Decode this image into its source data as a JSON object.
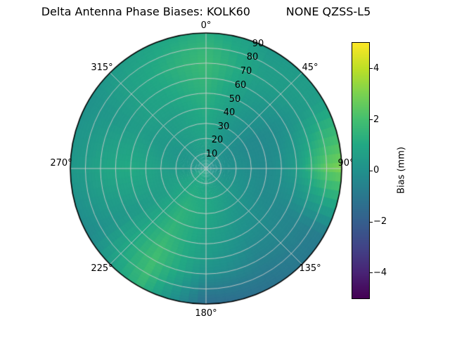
{
  "title": "Delta Antenna Phase Biases: KOLK60          NONE QZSS-L5",
  "chart_data": {
    "type": "heatmap",
    "projection": "polar",
    "title": "Delta Antenna Phase Biases: KOLK60          NONE QZSS-L5",
    "station": "KOLK60",
    "signal": "NONE QZSS-L5",
    "azimuth_ticks": [
      {
        "angle_deg": 0,
        "label": "0°"
      },
      {
        "angle_deg": 45,
        "label": "45°"
      },
      {
        "angle_deg": 90,
        "label": "90°"
      },
      {
        "angle_deg": 135,
        "label": "135°"
      },
      {
        "angle_deg": 180,
        "label": "180°"
      },
      {
        "angle_deg": 225,
        "label": "225°"
      },
      {
        "angle_deg": 270,
        "label": "270°"
      },
      {
        "angle_deg": 315,
        "label": "315°"
      }
    ],
    "elevation_ticks": [
      "10",
      "20",
      "30",
      "40",
      "50",
      "60",
      "70",
      "80",
      "90"
    ],
    "grid": {
      "rings": 9,
      "spoke_step_deg": 45,
      "color": "#c8c8c8"
    },
    "colorbar": {
      "label": "Bias (mm)",
      "min": -5,
      "max": 5,
      "ticks": [
        {
          "value": 4,
          "label": "4"
        },
        {
          "value": 2,
          "label": "2"
        },
        {
          "value": 0,
          "label": "0"
        },
        {
          "value": -2,
          "label": "−2"
        },
        {
          "value": -4,
          "label": "−4"
        }
      ],
      "colormap": [
        [
          0.0,
          "#440154"
        ],
        [
          0.1,
          "#482475"
        ],
        [
          0.2,
          "#414487"
        ],
        [
          0.3,
          "#355f8d"
        ],
        [
          0.4,
          "#2a788e"
        ],
        [
          0.5,
          "#21918c"
        ],
        [
          0.6,
          "#22a884"
        ],
        [
          0.7,
          "#44bf70"
        ],
        [
          0.8,
          "#7ad151"
        ],
        [
          0.9,
          "#bddf26"
        ],
        [
          1.0,
          "#fde725"
        ]
      ]
    },
    "data": {
      "azimuth_deg": [
        0,
        30,
        60,
        90,
        120,
        150,
        180,
        210,
        240,
        270,
        300,
        330
      ],
      "elevation_deg": [
        10,
        20,
        30,
        40,
        50,
        60,
        70,
        80,
        90
      ],
      "bias_mm": [
        [
          0.5,
          0.3,
          0.0,
          0.0,
          0.2,
          0.5,
          0.8,
          1.0,
          0.8,
          0.3,
          0.2,
          0.4
        ],
        [
          0.8,
          0.2,
          -0.2,
          0.0,
          0.2,
          0.6,
          1.0,
          1.2,
          0.8,
          0.4,
          0.2,
          0.5
        ],
        [
          1.0,
          0.2,
          -0.3,
          -0.2,
          0.0,
          0.4,
          1.0,
          1.4,
          0.6,
          0.6,
          0.3,
          0.6
        ],
        [
          1.2,
          0.3,
          -0.3,
          -0.3,
          -0.2,
          0.2,
          0.8,
          1.5,
          0.5,
          0.9,
          0.4,
          0.6
        ],
        [
          1.4,
          0.4,
          -0.2,
          0.0,
          -0.3,
          0.0,
          0.6,
          1.6,
          0.4,
          1.1,
          0.5,
          0.8
        ],
        [
          1.6,
          0.5,
          0.0,
          0.5,
          -0.4,
          -0.3,
          0.4,
          1.8,
          0.3,
          1.0,
          0.4,
          0.9
        ],
        [
          1.8,
          0.6,
          0.3,
          1.5,
          -0.5,
          -0.6,
          0.0,
          1.9,
          0.2,
          0.8,
          0.3,
          1.0
        ],
        [
          1.6,
          0.5,
          0.5,
          2.5,
          -0.7,
          -0.9,
          -0.8,
          1.8,
          0.0,
          0.5,
          0.2,
          0.9
        ],
        [
          1.2,
          0.3,
          0.6,
          3.0,
          -0.8,
          -1.2,
          -1.5,
          1.5,
          -0.3,
          0.3,
          0.0,
          0.7
        ]
      ]
    }
  }
}
